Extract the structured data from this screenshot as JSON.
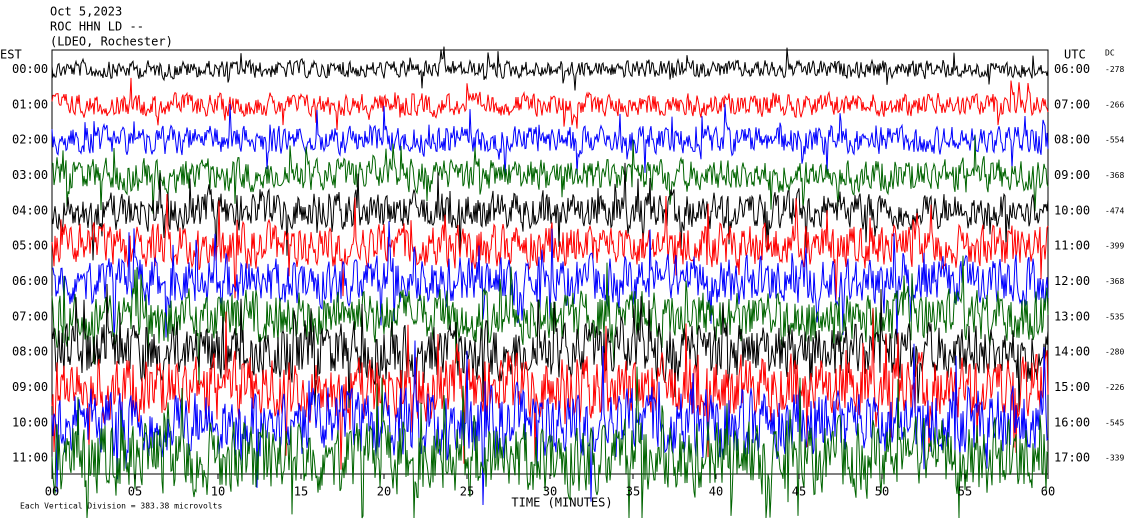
{
  "chart_data": {
    "type": "helicorder",
    "title_lines": [
      "Oct 5,2023",
      "ROC HHN LD --",
      "(LDEO, Rochester)"
    ],
    "left_axis_label": "EST",
    "right_axis_label": "UTC",
    "offset_label": "DC",
    "xlabel": "TIME (MINUTES)",
    "footnote": "Each Vertical Division = 383.38 microvolts",
    "xlim": [
      0,
      60
    ],
    "xticks": [
      {
        "value": 0,
        "label": "00"
      },
      {
        "value": 5,
        "label": "05"
      },
      10,
      15,
      20,
      25,
      30,
      35,
      40,
      45,
      50,
      55,
      60
    ],
    "rows": {
      "est": [
        "00:00",
        "01:00",
        "02:00",
        "03:00",
        "04:00",
        "05:00",
        "06:00",
        "07:00",
        "08:00",
        "09:00",
        "10:00",
        "11:00"
      ],
      "utc": [
        "06:00",
        "07:00",
        "08:00",
        "09:00",
        "10:00",
        "11:00",
        "12:00",
        "13:00",
        "14:00",
        "15:00",
        "16:00",
        "17:00"
      ],
      "dc": [
        -278,
        -266,
        -554,
        -368,
        -474,
        -399,
        -368,
        -535,
        -280,
        -226,
        -545,
        -339
      ]
    },
    "colors": [
      "#000000",
      "#ff0000",
      "#0000ff",
      "#006400"
    ]
  }
}
